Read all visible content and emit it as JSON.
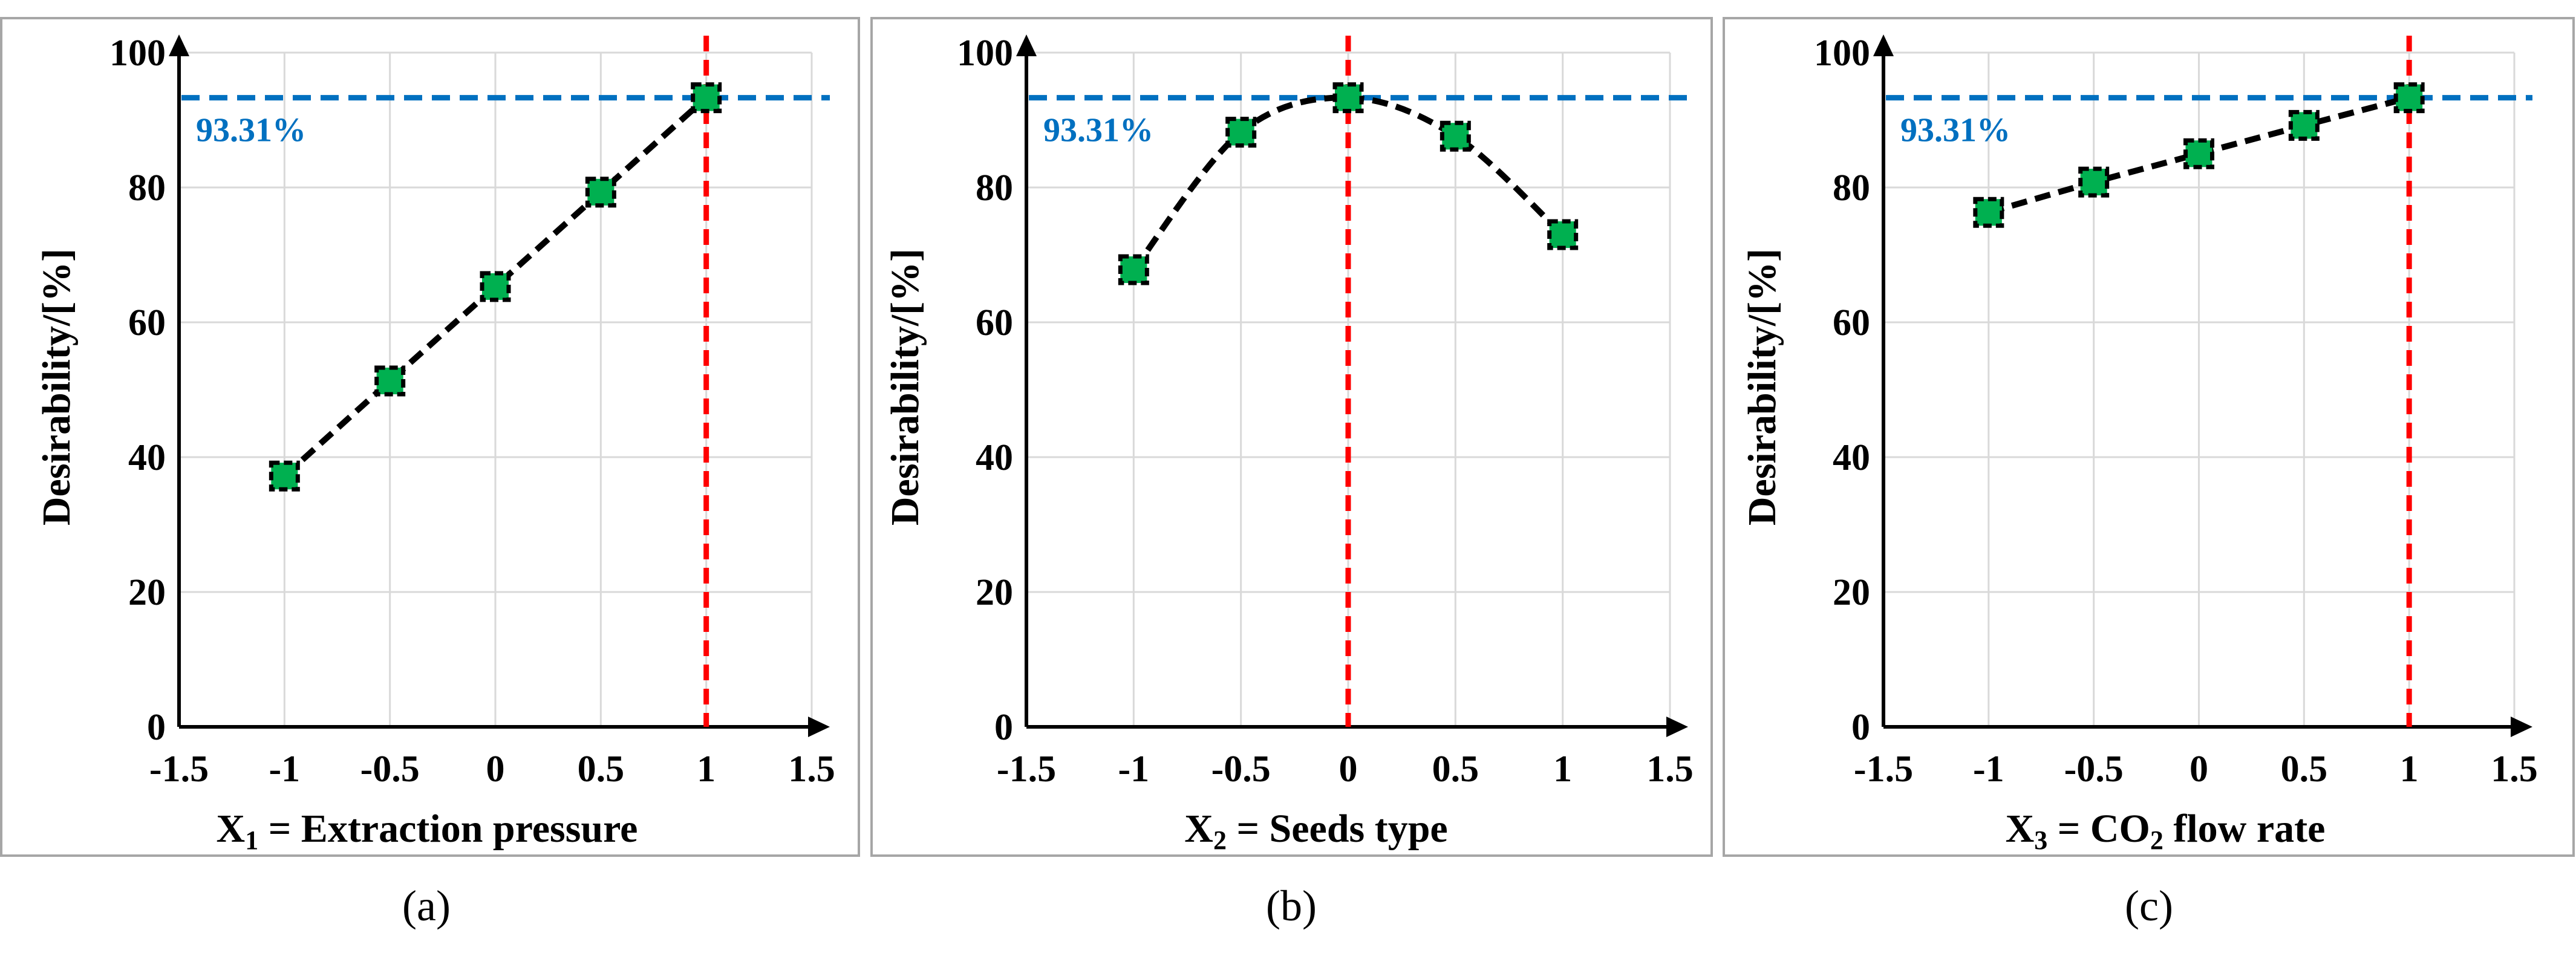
{
  "figure": {
    "panel_labels": [
      "(a)",
      "(b)",
      "(c)"
    ]
  },
  "colors": {
    "marker_fill": "#00b050",
    "reference_line_horizontal": "#0070c0",
    "reference_line_vertical": "#ff0000",
    "series_line": "#000000"
  },
  "chart_data": [
    {
      "type": "line",
      "panel": "(a)",
      "title": "",
      "xlabel": {
        "main": "X",
        "sub": "1",
        "rest": " = Extraction pressure"
      },
      "ylabel": "Desirability/[%]",
      "xlim": [
        -1.5,
        1.5
      ],
      "ylim": [
        0,
        100
      ],
      "xticks": [
        "-1.5",
        "-1",
        "-0.5",
        "0",
        "0.5",
        "1",
        "1.5"
      ],
      "xtick_values": [
        -1.5,
        -1,
        -0.5,
        0,
        0.5,
        1,
        1.5
      ],
      "yticks": [
        "0",
        "20",
        "40",
        "60",
        "80",
        "100"
      ],
      "ytick_values": [
        0,
        20,
        40,
        60,
        80,
        100
      ],
      "grid": true,
      "smooth": false,
      "series": [
        {
          "name": "Desirability",
          "x": [
            -1,
            -0.5,
            0,
            0.5,
            1
          ],
          "y": [
            37.2,
            51.3,
            65.3,
            79.3,
            93.31
          ]
        }
      ],
      "reference": {
        "hline": 93.31,
        "hline_label": "93.31%",
        "vline": 1
      }
    },
    {
      "type": "line",
      "panel": "(b)",
      "title": "",
      "xlabel": {
        "main": "X",
        "sub": "2",
        "rest": " = Seeds type"
      },
      "ylabel": "Desirability/[%]",
      "xlim": [
        -1.5,
        1.5
      ],
      "ylim": [
        0,
        100
      ],
      "xticks": [
        "-1.5",
        "-1",
        "-0.5",
        "0",
        "0.5",
        "1",
        "1.5"
      ],
      "xtick_values": [
        -1.5,
        -1,
        -0.5,
        0,
        0.5,
        1,
        1.5
      ],
      "yticks": [
        "0",
        "20",
        "40",
        "60",
        "80",
        "100"
      ],
      "ytick_values": [
        0,
        20,
        40,
        60,
        80,
        100
      ],
      "grid": true,
      "smooth": true,
      "series": [
        {
          "name": "Desirability",
          "x": [
            -1,
            -0.5,
            0,
            0.5,
            1
          ],
          "y": [
            67.8,
            88.2,
            93.31,
            87.6,
            73.0
          ]
        }
      ],
      "reference": {
        "hline": 93.31,
        "hline_label": "93.31%",
        "vline": 0
      }
    },
    {
      "type": "line",
      "panel": "(c)",
      "title": "",
      "xlabel": {
        "main": "X",
        "sub": "3",
        "rest": " = CO",
        "sub2": "2",
        "rest2": " flow rate"
      },
      "ylabel": "Desirability/[%]",
      "xlim": [
        -1.5,
        1.5
      ],
      "ylim": [
        0,
        100
      ],
      "xticks": [
        "-1.5",
        "-1",
        "-0.5",
        "0",
        "0.5",
        "1",
        "1.5"
      ],
      "xtick_values": [
        -1.5,
        -1,
        -0.5,
        0,
        0.5,
        1,
        1.5
      ],
      "yticks": [
        "0",
        "20",
        "40",
        "60",
        "80",
        "100"
      ],
      "ytick_values": [
        0,
        20,
        40,
        60,
        80,
        100
      ],
      "grid": true,
      "smooth": false,
      "series": [
        {
          "name": "Desirability",
          "x": [
            -1,
            -0.5,
            0,
            0.5,
            1
          ],
          "y": [
            76.3,
            80.8,
            85.0,
            89.2,
            93.31
          ]
        }
      ],
      "reference": {
        "hline": 93.31,
        "hline_label": "93.31%",
        "vline": 1
      }
    }
  ]
}
